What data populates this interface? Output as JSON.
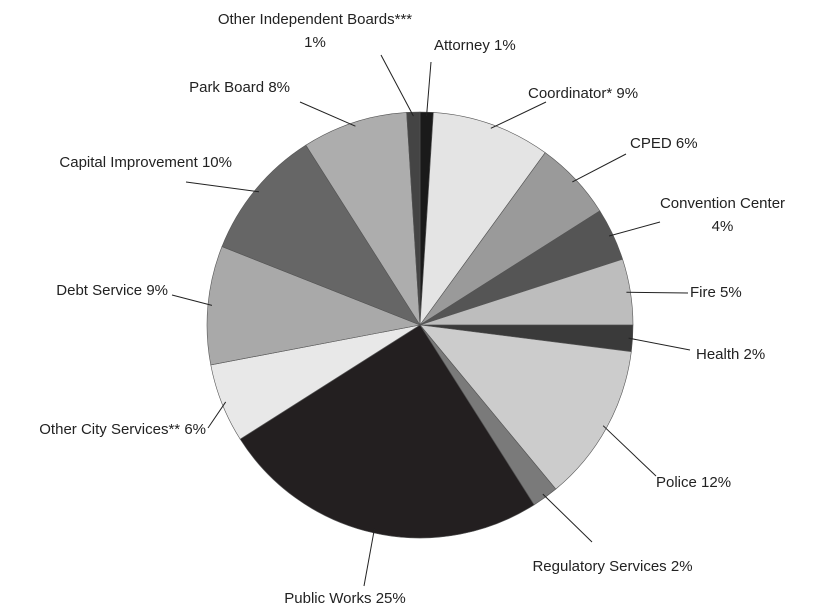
{
  "chart_data": {
    "type": "pie",
    "categories": [
      "Attorney",
      "Coordinator*",
      "CPED",
      "Convention Center",
      "Fire",
      "Health",
      "Police",
      "Regulatory Services",
      "Public Works",
      "Other City Services**",
      "Debt Service",
      "Capital Improvement",
      "Park Board",
      "Other Independent Boards***"
    ],
    "values": [
      1,
      9,
      6,
      4,
      5,
      2,
      12,
      2,
      25,
      6,
      9,
      10,
      8,
      1
    ],
    "value_labels": [
      "1%",
      "9%",
      "6%",
      "4%",
      "5%",
      "2%",
      "12%",
      "2%",
      "25%",
      "6%",
      "9%",
      "10%",
      "8%",
      "1%"
    ],
    "colors": [
      "#1a1a1a",
      "#e4e4e4",
      "#9a9a9a",
      "#555555",
      "#bdbdbd",
      "#3a3a3a",
      "#cccccc",
      "#7a7a7a",
      "#231f20",
      "#e8e8e8",
      "#a9a9a9",
      "#666666",
      "#adadad",
      "#444444"
    ]
  }
}
